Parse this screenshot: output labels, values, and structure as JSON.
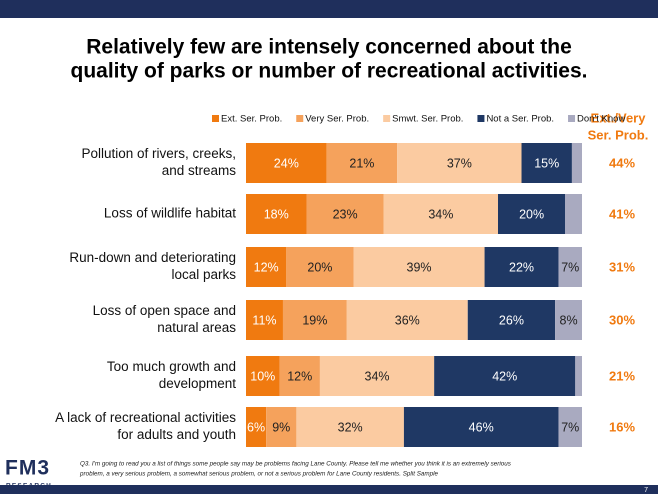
{
  "chart_data": {
    "type": "stacked_barh",
    "title": [
      "Relatively few are intensely concerned about the",
      "quality of parks or number of recreational activities."
    ],
    "categories": [
      [
        "Pollution of rivers, creeks,",
        "and streams"
      ],
      [
        "Loss of wildlife habitat"
      ],
      [
        "Run-down and deteriorating",
        "local parks"
      ],
      [
        "Loss of open space and",
        "natural areas"
      ],
      [
        "Too much growth and",
        "development"
      ],
      [
        "A lack of recreational activities",
        "for adults and youth"
      ]
    ],
    "xlim": [
      0,
      100
    ],
    "series": [
      {
        "name": "Ext. Ser. Prob.",
        "color": "#f07a10",
        "label_color": "#ffffff",
        "values": [
          24,
          18,
          12,
          11,
          10,
          6
        ],
        "value_labels": [
          "24%",
          "18%",
          "12%",
          "11%",
          "10%",
          "6%"
        ]
      },
      {
        "name": "Very Ser. Prob.",
        "color": "#f5a25c",
        "label_color": "#222222",
        "values": [
          21,
          23,
          20,
          19,
          12,
          9
        ],
        "value_labels": [
          "21%",
          "23%",
          "20%",
          "19%",
          "12%",
          "9%"
        ]
      },
      {
        "name": "Smwt. Ser. Prob.",
        "color": "#fbcba1",
        "label_color": "#222222",
        "values": [
          37,
          34,
          39,
          36,
          34,
          32
        ],
        "value_labels": [
          "37%",
          "34%",
          "39%",
          "36%",
          "34%",
          "32%"
        ]
      },
      {
        "name": "Not a Ser. Prob.",
        "color": "#1f3864",
        "label_color": "#ffffff",
        "values": [
          15,
          20,
          22,
          26,
          42,
          46
        ],
        "value_labels": [
          "15%",
          "20%",
          "22%",
          "26%",
          "42%",
          "46%"
        ]
      },
      {
        "name": "Don't Know",
        "color": "#a9aac0",
        "label_color": "#222222",
        "values": [
          3,
          5,
          7,
          8,
          2,
          7
        ],
        "value_labels": [
          null,
          null,
          "7%",
          "8%",
          null,
          "7%"
        ]
      }
    ],
    "summary": {
      "title": [
        "Ext./Very",
        "Ser. Prob."
      ],
      "color": "#f07a10",
      "labels": [
        "44%",
        "41%",
        "31%",
        "30%",
        "21%",
        "16%"
      ]
    },
    "footnote": [
      "Q3. I'm going to read you a list of things some people say may be problems facing Lane County. Please tell me whether you think it is an extremely serious",
      "problem, a very serious problem, a somewhat serious problem, or not a serious problem for Lane County residents.  Split Sample"
    ],
    "logo": {
      "main": "FM3",
      "sub": "RESEARCH"
    },
    "page_number": "7"
  }
}
